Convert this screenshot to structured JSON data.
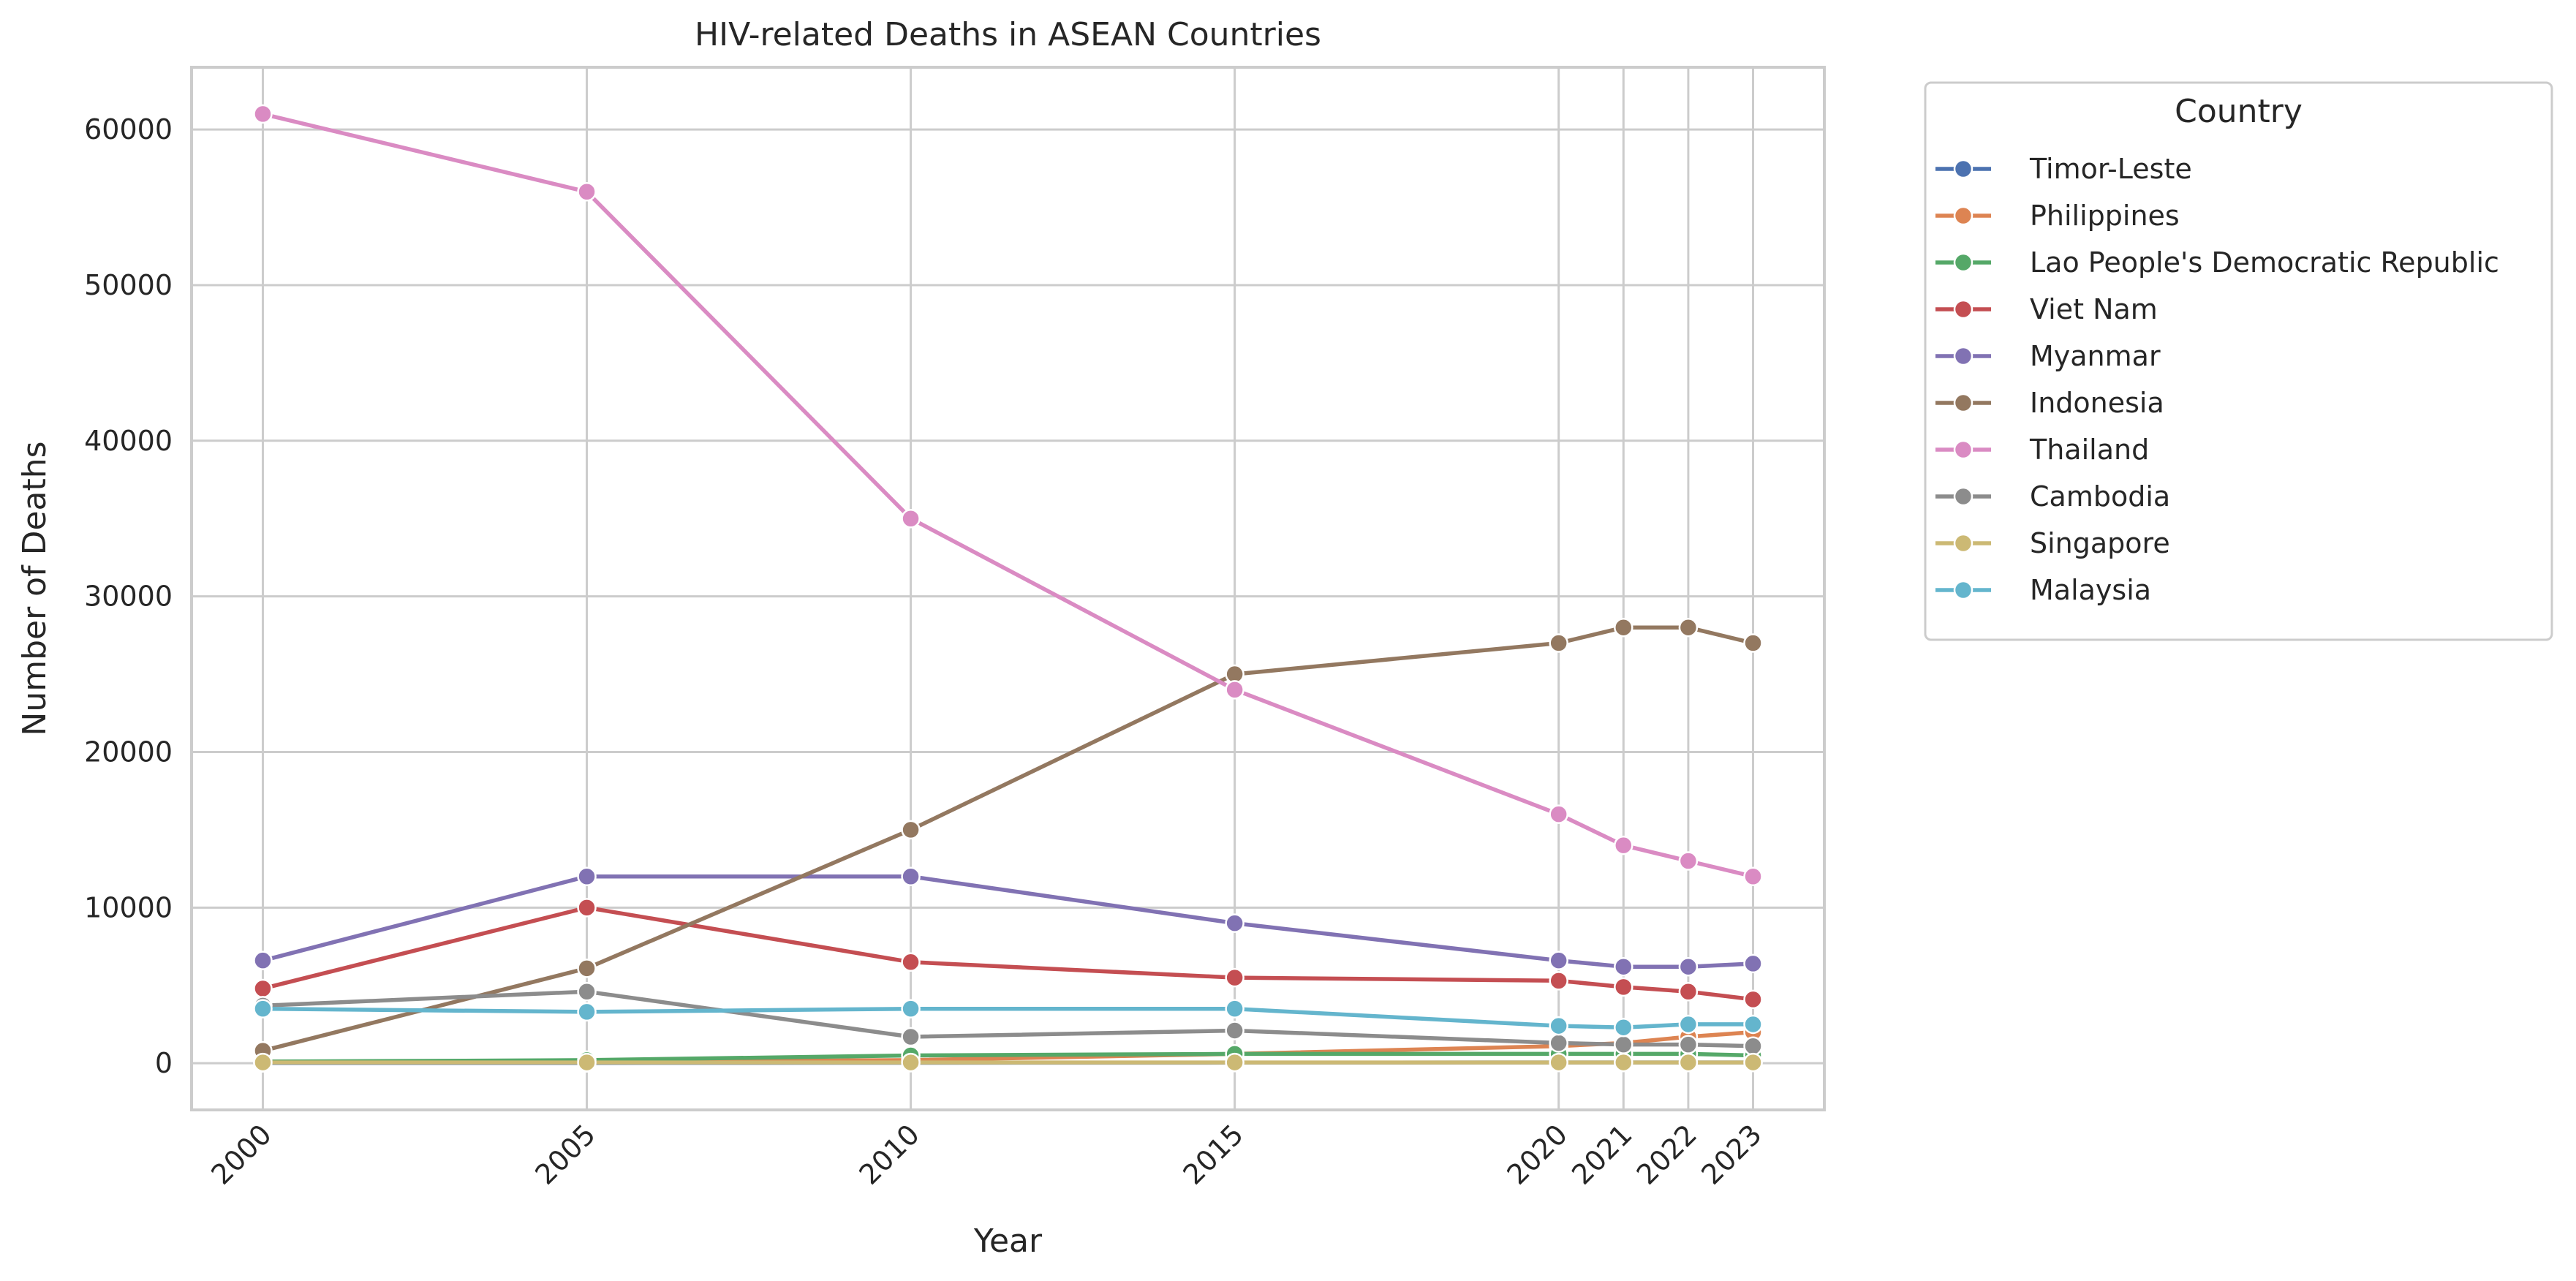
{
  "chart_data": {
    "type": "line",
    "title": "HIV-related Deaths in ASEAN Countries",
    "xlabel": "Year",
    "ylabel": "Number of Deaths",
    "x": [
      2000,
      2005,
      2010,
      2015,
      2020,
      2021,
      2022,
      2023
    ],
    "x_tick_labels": [
      "2000",
      "2005",
      "2010",
      "2015",
      "2020",
      "2021",
      "2022",
      "2023"
    ],
    "y_ticks": [
      0,
      10000,
      20000,
      30000,
      40000,
      50000,
      60000
    ],
    "y_tick_labels": [
      "0",
      "10000",
      "20000",
      "30000",
      "40000",
      "50000",
      "60000"
    ],
    "xlim": [
      1998.9,
      2024.1
    ],
    "ylim": [
      -3000,
      64000
    ],
    "grid": true,
    "legend": {
      "title": "Country",
      "placement": "outside upper right"
    },
    "series": [
      {
        "name": "Timor-Leste",
        "color": "#4c72b0",
        "values": [
          20,
          20,
          30,
          40,
          50,
          50,
          50,
          50
        ]
      },
      {
        "name": "Philippines",
        "color": "#dd8452",
        "values": [
          100,
          100,
          200,
          600,
          1100,
          1300,
          1700,
          2000
        ]
      },
      {
        "name": "Lao People's Democratic Republic",
        "color": "#55a868",
        "values": [
          100,
          200,
          500,
          600,
          600,
          600,
          600,
          500
        ]
      },
      {
        "name": "Viet Nam",
        "color": "#c44e52",
        "values": [
          4800,
          10000,
          6500,
          5500,
          5300,
          4900,
          4600,
          4100
        ]
      },
      {
        "name": "Myanmar",
        "color": "#8172b3",
        "values": [
          6600,
          12000,
          12000,
          9000,
          6600,
          6200,
          6200,
          6400
        ]
      },
      {
        "name": "Indonesia",
        "color": "#937860",
        "values": [
          800,
          6100,
          15000,
          25000,
          27000,
          28000,
          28000,
          27000
        ]
      },
      {
        "name": "Thailand",
        "color": "#da8bc3",
        "values": [
          61000,
          56000,
          35000,
          24000,
          16000,
          14000,
          13000,
          12000
        ]
      },
      {
        "name": "Cambodia",
        "color": "#8c8c8c",
        "values": [
          3700,
          4600,
          1700,
          2100,
          1300,
          1200,
          1200,
          1100
        ]
      },
      {
        "name": "Singapore",
        "color": "#ccb974",
        "values": [
          50,
          50,
          50,
          50,
          50,
          50,
          50,
          50
        ]
      },
      {
        "name": "Malaysia",
        "color": "#64b5cd",
        "values": [
          3500,
          3300,
          3500,
          3500,
          2400,
          2300,
          2500,
          2500
        ]
      }
    ]
  }
}
